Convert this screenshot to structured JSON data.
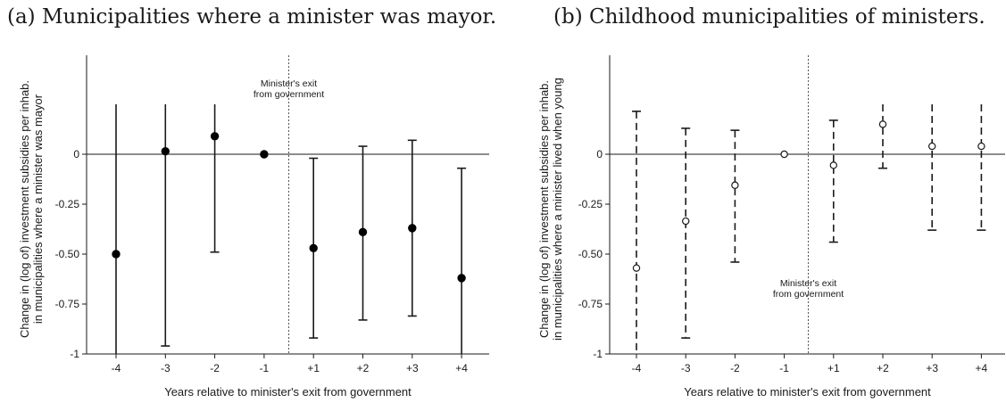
{
  "chart_data": [
    {
      "panel": "a",
      "type": "scatter",
      "title": "(a) Municipalities where a minister was mayor.",
      "xlabel": "Years relative to minister's exit from government",
      "ylabel_lines": [
        "Change in (log of) investment subsidies per inhab.",
        "in municipalities where a minister was mayor"
      ],
      "categories": [
        "-4",
        "-3",
        "-2",
        "-1",
        "+1",
        "+2",
        "+3",
        "+4"
      ],
      "yticks": [
        {
          "v": 0,
          "label": "0"
        },
        {
          "v": -0.25,
          "label": "-0.25"
        },
        {
          "v": -0.5,
          "label": "-0.50"
        },
        {
          "v": -0.75,
          "label": "-0.75"
        },
        {
          "v": -1,
          "label": "-1"
        }
      ],
      "ylim": [
        -1,
        0.25
      ],
      "values": [
        -0.5,
        0.015,
        0.09,
        0,
        -0.47,
        -0.39,
        -0.37,
        -0.62
      ],
      "ci_low": [
        -1.0,
        -0.96,
        -0.49,
        null,
        -0.92,
        -0.83,
        -0.81,
        -1.0
      ],
      "ci_high": [
        0.25,
        0.25,
        0.25,
        null,
        -0.02,
        0.04,
        0.07,
        -0.07
      ],
      "marker": "filled",
      "line_style": "solid",
      "annotation_lines": [
        "Minister's exit",
        "from government"
      ],
      "annotation_position": "top",
      "zero_line": true
    },
    {
      "panel": "b",
      "type": "scatter",
      "title": "(b) Childhood municipalities of ministers.",
      "xlabel": "Years relative to minister's exit from government",
      "ylabel_lines": [
        "Change in (log of) investment subsidies per inhab.",
        "in municipalities where a minister lived when young"
      ],
      "categories": [
        "-4",
        "-3",
        "-2",
        "-1",
        "+1",
        "+2",
        "+3",
        "+4"
      ],
      "yticks": [
        {
          "v": 0,
          "label": "0"
        },
        {
          "v": -0.25,
          "label": "-0.25"
        },
        {
          "v": -0.5,
          "label": "-0.50"
        },
        {
          "v": -0.75,
          "label": "-0.75"
        },
        {
          "v": -1,
          "label": "-1"
        }
      ],
      "ylim": [
        -1,
        0.25
      ],
      "values": [
        -0.57,
        -0.335,
        -0.155,
        0,
        -0.055,
        0.15,
        0.04,
        0.04
      ],
      "ci_low": [
        -1.0,
        -0.92,
        -0.54,
        null,
        -0.44,
        -0.07,
        -0.38,
        -0.38
      ],
      "ci_high": [
        0.215,
        0.13,
        0.12,
        null,
        0.17,
        0.25,
        0.25,
        0.25
      ],
      "marker": "hollow",
      "line_style": "dashed",
      "annotation_lines": [
        "Minister's exit",
        "from government"
      ],
      "annotation_position": "bottom",
      "zero_line": true
    }
  ]
}
